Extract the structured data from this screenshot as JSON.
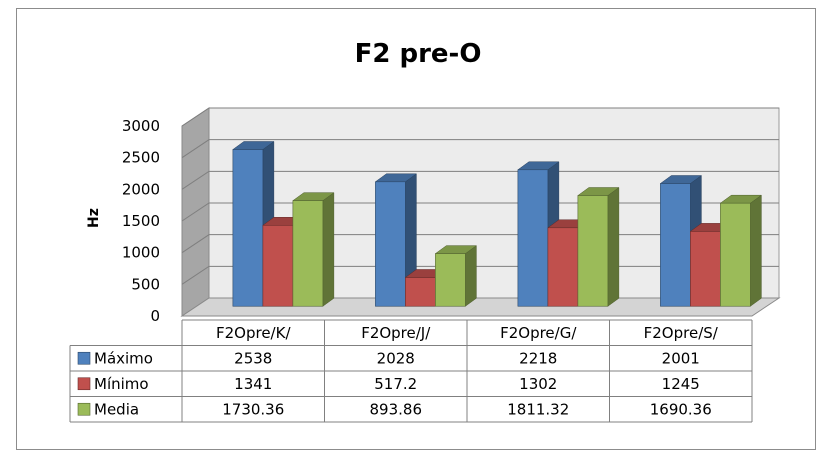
{
  "chart_data": {
    "type": "bar",
    "title": "F2 pre-O",
    "xlabel": "",
    "ylabel": "Hz",
    "ylim": [
      0,
      3000
    ],
    "yticks": [
      0,
      500,
      1000,
      1500,
      2000,
      2500,
      3000
    ],
    "categories": [
      "F2Opre/K/",
      "F2Opre/J/",
      "F2Opre/G/",
      "F2Opre/S/"
    ],
    "series": [
      {
        "name": "Máximo",
        "values": [
          2538,
          2028,
          2218,
          2001
        ],
        "labels": [
          "2538",
          "2028",
          "2218",
          "2001"
        ],
        "color": "#4f81bd"
      },
      {
        "name": "Mínimo",
        "values": [
          1341,
          517.2,
          1302,
          1245
        ],
        "labels": [
          "1341",
          "517.2",
          "1302",
          "1245"
        ],
        "color": "#c0504d"
      },
      {
        "name": "Media",
        "values": [
          1730.36,
          893.86,
          1811.32,
          1690.36
        ],
        "labels": [
          "1730.36",
          "893.86",
          "1811.32",
          "1690.36"
        ],
        "color": "#9bbb59"
      }
    ],
    "grid": true,
    "legend": "data-table"
  }
}
